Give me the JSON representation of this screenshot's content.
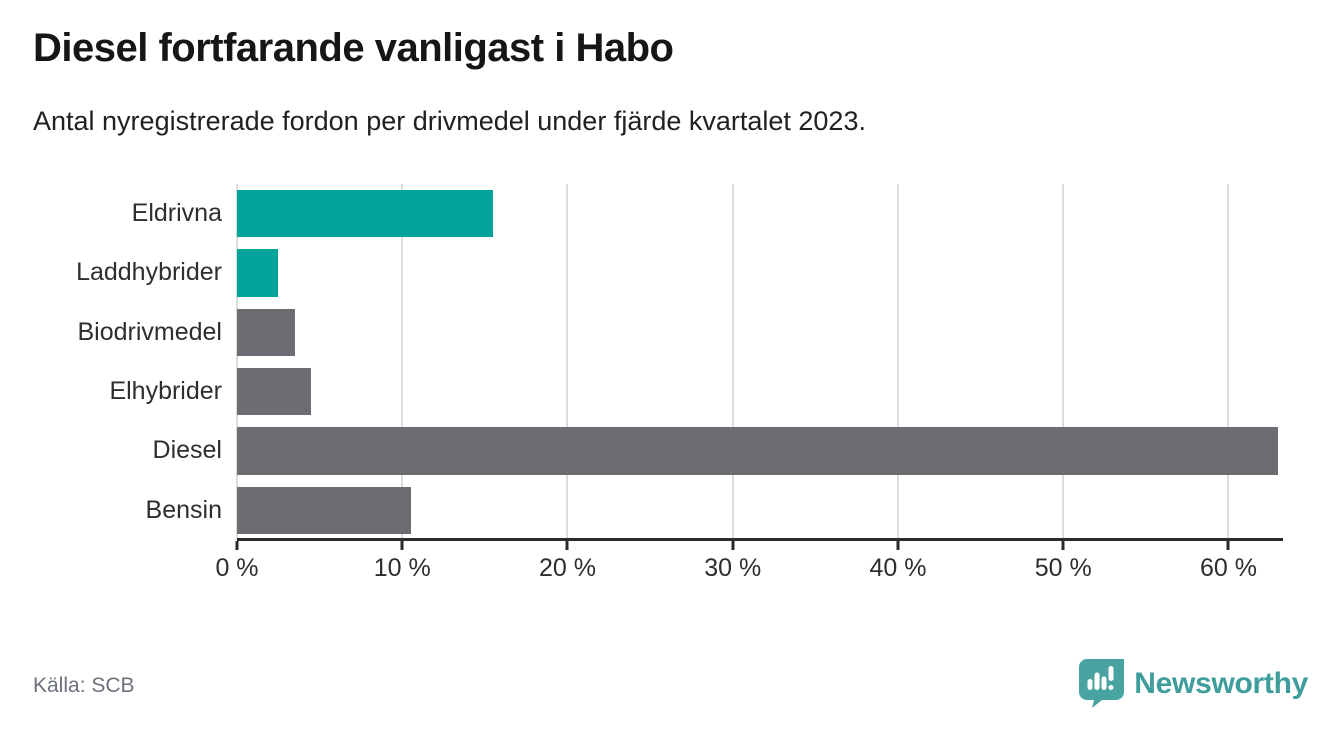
{
  "header": {
    "title": "Diesel fortfarande vanligast i Habo",
    "subtitle": "Antal nyregistrerade fordon per drivmedel under fjärde kvartalet 2023."
  },
  "chart_data": {
    "type": "bar",
    "orientation": "horizontal",
    "title": "Diesel fortfarande vanligast i Habo",
    "subtitle": "Antal nyregistrerade fordon per drivmedel under fjärde kvartalet 2023.",
    "categories": [
      "Eldrivna",
      "Laddhybrider",
      "Biodrivmedel",
      "Elhybrider",
      "Diesel",
      "Bensin"
    ],
    "values": [
      15.5,
      2.5,
      3.5,
      4.5,
      63,
      10.5
    ],
    "unit": "%",
    "bar_colors": [
      "#00a49a",
      "#00a49a",
      "#6c6d72",
      "#6c6d72",
      "#6c6d72",
      "#6c6d72"
    ],
    "xlim": [
      0,
      63.3
    ],
    "x_ticks": [
      0,
      10,
      20,
      30,
      40,
      50,
      60
    ],
    "x_tick_labels": [
      "0 %",
      "10 %",
      "20 %",
      "30 %",
      "40 %",
      "50 %",
      "60 %"
    ],
    "grid": true,
    "legend": false
  },
  "footer": {
    "source": "Källa: SCB"
  },
  "logo": {
    "brand": "Newsworthy",
    "icon": "newsworthy-chart-pin-icon"
  },
  "colors": {
    "accent_teal": "#00a49a",
    "neutral_gray": "#6c6d72",
    "gridline": "#dcdcdc",
    "axis": "#2b2b2b",
    "brand_teal": "#3f9d9c"
  }
}
